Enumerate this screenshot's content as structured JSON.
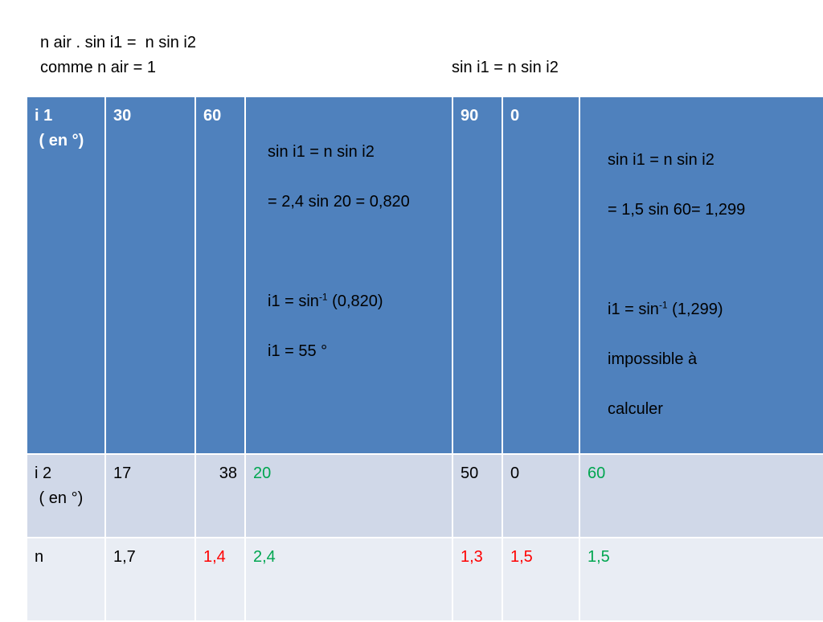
{
  "header": {
    "line1": "n air . sin i1 =  n sin i2",
    "line2": "comme n air = 1",
    "line3": "sin i1 = n sin i2"
  },
  "table": {
    "row_i1": {
      "label_line1": "i 1",
      "label_line2": " ( en °)",
      "v1": "30",
      "v2": "60",
      "v4": "90",
      "v5": "0"
    },
    "note_left": {
      "line1": "sin i1 = n sin i2",
      "line2": "= 2,4 sin 20 = 0,820",
      "line3_prefix": "i1 = sin",
      "line3_sup": "-1",
      "line3_suffix": " (0,820)",
      "line4": "i1 = 55 °"
    },
    "note_right": {
      "line1": "sin i1 = n sin i2",
      "line2": "= 1,5 sin 60= 1,299",
      "line3_prefix": "i1 = sin",
      "line3_sup": "-1",
      "line3_suffix": " (1,299)",
      "line4": "impossible à",
      "line5": "calculer"
    },
    "row_i2": {
      "label_line1": "i 2",
      "label_line2": " ( en °)",
      "v1": "17",
      "v2": "38",
      "v3": "20",
      "v4": "50",
      "v5": "0",
      "v6": "60"
    },
    "row_n": {
      "label": "n",
      "v1": "1,7",
      "v2": "1,4",
      "v3": "2,4",
      "v4": "1,3",
      "v5": "1,5",
      "v6": "1,5"
    }
  },
  "colors": {
    "header_row": "#4f81bd",
    "middle_row": "#d0d8e8",
    "bottom_row": "#e9edf4",
    "red_value": "#ff0000",
    "green_value": "#00a650"
  }
}
